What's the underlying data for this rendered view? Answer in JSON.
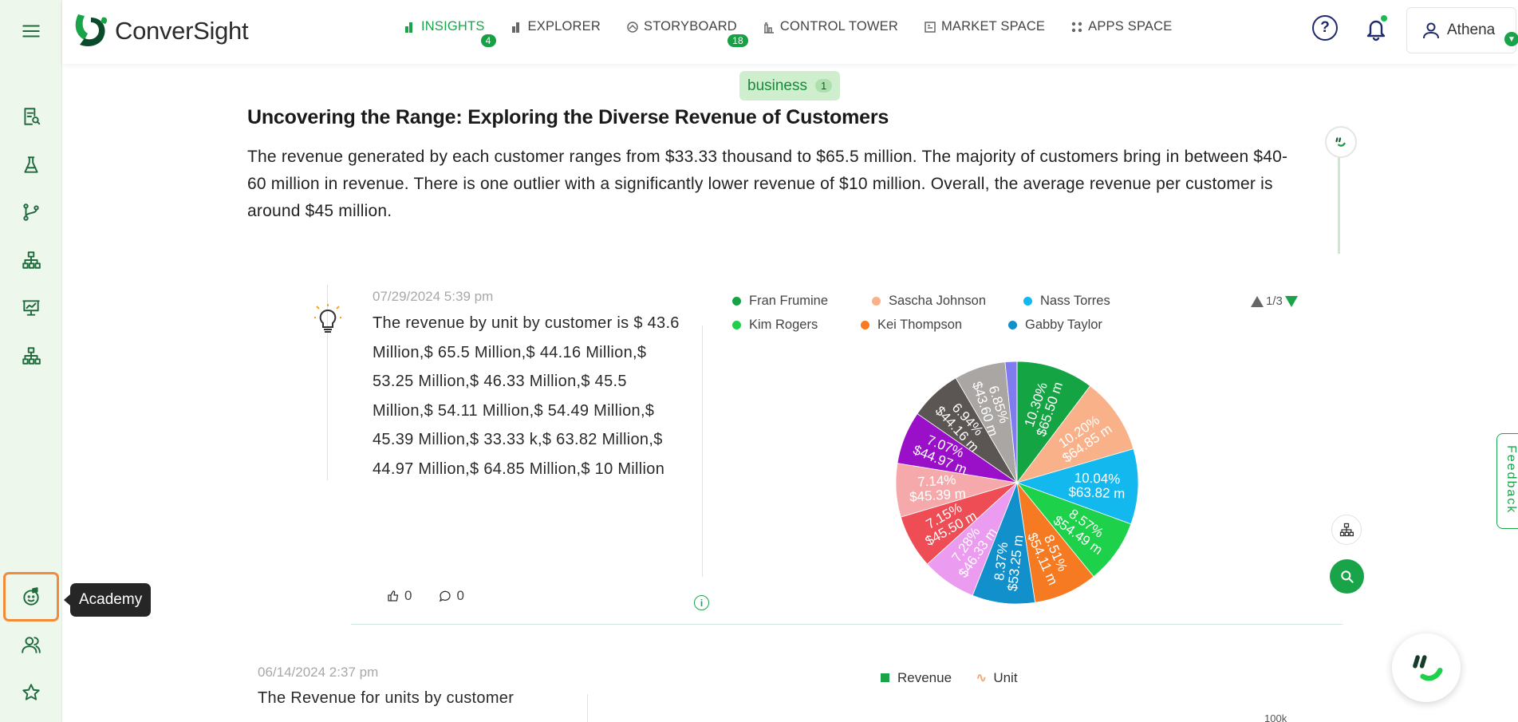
{
  "app": {
    "brand": "ConverSight"
  },
  "nav": [
    {
      "label": "INSIGHTS",
      "icon": "bar-chart-icon",
      "badge": "4",
      "active": true
    },
    {
      "label": "EXPLORER",
      "icon": "bar-chart-icon",
      "badge": ""
    },
    {
      "label": "STORYBOARD",
      "icon": "storyboard-icon",
      "badge": "18"
    },
    {
      "label": "CONTROL TOWER",
      "icon": "control-tower-icon",
      "badge": ""
    },
    {
      "label": "MARKET SPACE",
      "icon": "market-space-icon",
      "badge": ""
    },
    {
      "label": "APPS SPACE",
      "icon": "apps-grid-icon",
      "badge": ""
    }
  ],
  "user": {
    "name": "Athena"
  },
  "sidebar": {
    "items": [
      "menu-icon",
      "report-search-icon",
      "flask-icon",
      "branch-icon",
      "hierarchy-icon",
      "presentation-icon",
      "hierarchy-icon",
      "academy-icon",
      "users-icon",
      "star-icon"
    ],
    "tooltip": "Academy"
  },
  "tag": {
    "label": "business",
    "count": "1"
  },
  "headline": "Uncovering the Range: Exploring the Diverse Revenue of Customers",
  "summary": "The revenue generated by each customer ranges from $33.33 thousand to $65.5 million. The majority of customers bring in between $40-60 million in revenue. There is one outlier with a significantly lower revenue of $10 million. Overall, the average revenue per customer is around $45 million.",
  "card1": {
    "timestamp": "07/29/2024 5:39 pm",
    "text": "The revenue by unit by customer is $ 43.6 Million,$ 65.5 Million,$ 44.16 Million,$ 53.25 Million,$ 46.33 Million,$ 45.5 Million,$ 54.11 Million,$ 54.49 Million,$ 45.39 Million,$ 33.33 k,$ 63.82 Million,$ 44.97 Million,$ 64.85 Million,$ 10 Million",
    "likes": "0",
    "comments": "0",
    "pager": "1/3",
    "legend": [
      {
        "name": "Fran Frumine",
        "color": "#15a443"
      },
      {
        "name": "Sascha Johnson",
        "color": "#f9b189"
      },
      {
        "name": "Nass Torres",
        "color": "#13b9ee"
      },
      {
        "name": "Kim Rogers",
        "color": "#1ed14a"
      },
      {
        "name": "Kei Thompson",
        "color": "#f57a22"
      },
      {
        "name": "Gabby Taylor",
        "color": "#1190cc"
      }
    ]
  },
  "chart_data": {
    "type": "pie",
    "slices": [
      {
        "pct": "10.30%",
        "value": "$65.50 m",
        "share": 10.3,
        "color": "#15a443"
      },
      {
        "pct": "10.20%",
        "value": "$64.85 m",
        "share": 10.2,
        "color": "#f9b189"
      },
      {
        "pct": "10.04%",
        "value": "$63.82 m",
        "share": 10.04,
        "color": "#13b9ee"
      },
      {
        "pct": "8.57%",
        "value": "$54.49 m",
        "share": 8.57,
        "color": "#1ed14a"
      },
      {
        "pct": "8.51%",
        "value": "$54.11 m",
        "share": 8.51,
        "color": "#f57a22"
      },
      {
        "pct": "8.37%",
        "value": "$53.25 m",
        "share": 8.37,
        "color": "#1190cc"
      },
      {
        "pct": "7.28%",
        "value": "$46.33 m",
        "share": 7.28,
        "color": "#ec9cf0"
      },
      {
        "pct": "7.15%",
        "value": "$45.50 m",
        "share": 7.15,
        "color": "#ef4d55"
      },
      {
        "pct": "7.14%",
        "value": "$45.39 m",
        "share": 7.14,
        "color": "#f6a9ab"
      },
      {
        "pct": "7.07%",
        "value": "$44.97 m",
        "share": 7.07,
        "color": "#9a10c8"
      },
      {
        "pct": "6.94%",
        "value": "$44.16 m",
        "share": 6.94,
        "color": "#5b5553"
      },
      {
        "pct": "6.85%",
        "value": "$43.60 m",
        "share": 6.85,
        "color": "#aaa6a4"
      },
      {
        "pct": "",
        "value": "",
        "share": 1.57,
        "color": "#7f7cf0"
      },
      {
        "pct": "",
        "value": "",
        "share": 0.01,
        "color": "#cccccc"
      }
    ]
  },
  "card2": {
    "timestamp": "06/14/2024 2:37 pm",
    "text": "The Revenue for units by customer",
    "legend": [
      "Revenue",
      "Unit"
    ],
    "axis_label": "100k"
  },
  "feedback": "Feedback"
}
